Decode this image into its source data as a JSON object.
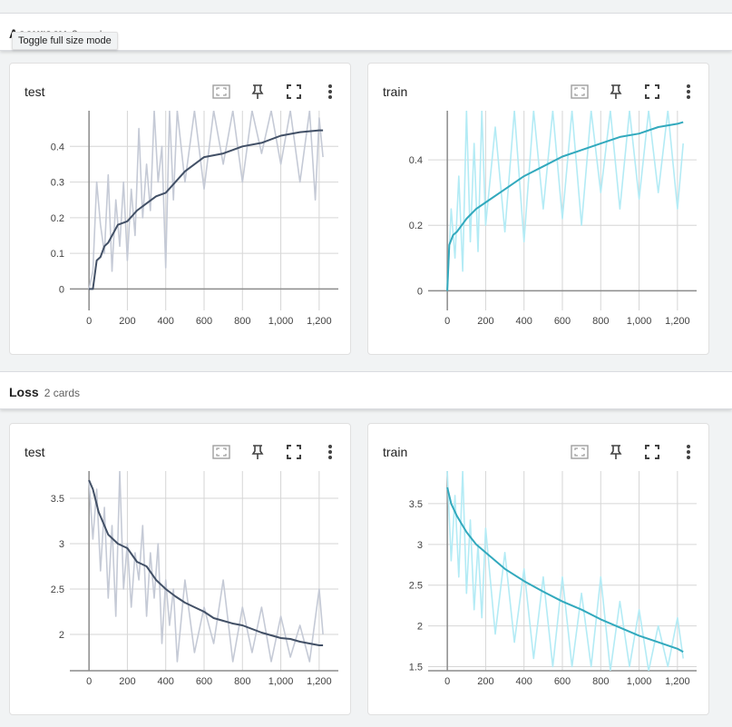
{
  "tooltip": "Toggle full size mode",
  "groups": [
    {
      "title": "Accuracy",
      "count": "2 cards"
    },
    {
      "title": "Loss",
      "count": "2 cards"
    }
  ],
  "chart_data": [
    {
      "type": "line",
      "title": "test",
      "group": "Accuracy",
      "xlim": [
        -100,
        1300
      ],
      "ylim": [
        -0.06,
        0.5
      ],
      "xticks": [
        0,
        200,
        400,
        600,
        800,
        1000,
        1200
      ],
      "xticklabels": [
        "0",
        "200",
        "400",
        "600",
        "800",
        "1,000",
        "1,200"
      ],
      "yticks": [
        0,
        0.1,
        0.2,
        0.3,
        0.4
      ],
      "yticklabels": [
        "0",
        "0.1",
        "0.2",
        "0.3",
        "0.4"
      ],
      "colors": {
        "raw": "#c5cad6",
        "smoothed": "#425066"
      },
      "series": [
        {
          "x": [
            0,
            20,
            40,
            60,
            80,
            100,
            150,
            200,
            250,
            300,
            350,
            400,
            500,
            600,
            700,
            800,
            900,
            1000,
            1100,
            1200,
            1220
          ],
          "values": [
            0.0,
            0.0,
            0.08,
            0.09,
            0.12,
            0.13,
            0.18,
            0.19,
            0.22,
            0.24,
            0.26,
            0.27,
            0.33,
            0.37,
            0.38,
            0.4,
            0.41,
            0.43,
            0.44,
            0.445,
            0.445
          ]
        },
        {
          "x": [
            0,
            20,
            40,
            60,
            80,
            100,
            120,
            140,
            160,
            180,
            200,
            220,
            240,
            260,
            280,
            300,
            320,
            340,
            360,
            380,
            400,
            420,
            440,
            460,
            500,
            550,
            600,
            650,
            700,
            750,
            800,
            850,
            900,
            950,
            1000,
            1050,
            1100,
            1150,
            1180,
            1200,
            1220
          ],
          "values": [
            0.0,
            0.05,
            0.3,
            0.18,
            0.1,
            0.32,
            0.05,
            0.25,
            0.12,
            0.3,
            0.08,
            0.28,
            0.15,
            0.45,
            0.2,
            0.35,
            0.22,
            0.5,
            0.3,
            0.4,
            0.06,
            0.5,
            0.25,
            0.5,
            0.3,
            0.5,
            0.28,
            0.5,
            0.35,
            0.5,
            0.3,
            0.5,
            0.38,
            0.5,
            0.35,
            0.5,
            0.3,
            0.5,
            0.25,
            0.48,
            0.37
          ]
        }
      ]
    },
    {
      "type": "line",
      "title": "train",
      "group": "Accuracy",
      "xlim": [
        -100,
        1300
      ],
      "ylim": [
        -0.06,
        0.55
      ],
      "xticks": [
        0,
        200,
        400,
        600,
        800,
        1000,
        1200
      ],
      "xticklabels": [
        "0",
        "200",
        "400",
        "600",
        "800",
        "1,000",
        "1,200"
      ],
      "yticks": [
        0,
        0.2,
        0.4
      ],
      "yticklabels": [
        "0",
        "0.2",
        "0.4"
      ],
      "colors": {
        "raw": "#b3ebf5",
        "smoothed": "#32a9bd"
      },
      "series": [
        {
          "x": [
            0,
            10,
            30,
            50,
            100,
            150,
            200,
            300,
            400,
            500,
            600,
            700,
            800,
            900,
            1000,
            1100,
            1200,
            1230
          ],
          "values": [
            0.0,
            0.14,
            0.17,
            0.18,
            0.22,
            0.25,
            0.27,
            0.31,
            0.35,
            0.38,
            0.41,
            0.43,
            0.45,
            0.47,
            0.48,
            0.5,
            0.51,
            0.515
          ]
        },
        {
          "x": [
            0,
            20,
            40,
            60,
            80,
            100,
            120,
            140,
            160,
            180,
            200,
            250,
            300,
            350,
            400,
            450,
            500,
            550,
            600,
            650,
            700,
            750,
            800,
            850,
            900,
            950,
            1000,
            1050,
            1100,
            1150,
            1200,
            1230
          ],
          "values": [
            0.0,
            0.25,
            0.1,
            0.35,
            0.06,
            0.55,
            0.15,
            0.45,
            0.12,
            0.55,
            0.2,
            0.5,
            0.18,
            0.55,
            0.15,
            0.55,
            0.25,
            0.55,
            0.22,
            0.55,
            0.2,
            0.55,
            0.3,
            0.55,
            0.25,
            0.55,
            0.28,
            0.55,
            0.3,
            0.55,
            0.25,
            0.45
          ]
        }
      ]
    },
    {
      "type": "line",
      "title": "test",
      "group": "Loss",
      "xlim": [
        -100,
        1300
      ],
      "ylim": [
        1.6,
        3.8
      ],
      "xticks": [
        0,
        200,
        400,
        600,
        800,
        1000,
        1200
      ],
      "xticklabels": [
        "0",
        "200",
        "400",
        "600",
        "800",
        "1,000",
        "1,200"
      ],
      "yticks": [
        2,
        2.5,
        3,
        3.5
      ],
      "yticklabels": [
        "2",
        "2.5",
        "3",
        "3.5"
      ],
      "colors": {
        "raw": "#c5cad6",
        "smoothed": "#425066"
      },
      "series": [
        {
          "x": [
            0,
            20,
            50,
            100,
            150,
            200,
            250,
            300,
            350,
            400,
            450,
            500,
            550,
            600,
            650,
            700,
            750,
            800,
            850,
            900,
            950,
            1000,
            1050,
            1100,
            1150,
            1200,
            1220
          ],
          "values": [
            3.7,
            3.6,
            3.35,
            3.1,
            3.0,
            2.95,
            2.8,
            2.75,
            2.6,
            2.5,
            2.42,
            2.35,
            2.3,
            2.25,
            2.18,
            2.15,
            2.12,
            2.1,
            2.06,
            2.02,
            1.99,
            1.96,
            1.95,
            1.92,
            1.9,
            1.88,
            1.88
          ]
        },
        {
          "x": [
            0,
            20,
            40,
            60,
            80,
            100,
            120,
            140,
            160,
            180,
            200,
            220,
            240,
            260,
            280,
            300,
            320,
            340,
            360,
            380,
            400,
            420,
            440,
            460,
            500,
            550,
            600,
            650,
            700,
            750,
            800,
            850,
            900,
            950,
            1000,
            1050,
            1100,
            1150,
            1200,
            1220
          ],
          "values": [
            3.7,
            3.05,
            3.6,
            2.7,
            3.4,
            2.4,
            3.2,
            2.2,
            3.8,
            2.5,
            3.0,
            2.3,
            2.9,
            2.6,
            3.2,
            2.2,
            2.9,
            2.4,
            3.0,
            1.9,
            2.6,
            2.1,
            2.5,
            1.7,
            2.6,
            1.8,
            2.3,
            1.9,
            2.6,
            1.7,
            2.3,
            1.8,
            2.3,
            1.7,
            2.2,
            1.75,
            2.1,
            1.7,
            2.5,
            2.0
          ]
        }
      ]
    },
    {
      "type": "line",
      "title": "train",
      "group": "Loss",
      "xlim": [
        -100,
        1300
      ],
      "ylim": [
        1.45,
        3.9
      ],
      "xticks": [
        0,
        200,
        400,
        600,
        800,
        1000,
        1200
      ],
      "xticklabels": [
        "0",
        "200",
        "400",
        "600",
        "800",
        "1,000",
        "1,200"
      ],
      "yticks": [
        1.5,
        2,
        2.5,
        3,
        3.5
      ],
      "yticklabels": [
        "1.5",
        "2",
        "2.5",
        "3",
        "3.5"
      ],
      "colors": {
        "raw": "#b3ebf5",
        "smoothed": "#32a9bd"
      },
      "series": [
        {
          "x": [
            0,
            20,
            50,
            100,
            150,
            200,
            300,
            400,
            500,
            600,
            700,
            800,
            900,
            1000,
            1100,
            1200,
            1230
          ],
          "values": [
            3.7,
            3.5,
            3.35,
            3.15,
            3.0,
            2.9,
            2.7,
            2.55,
            2.42,
            2.3,
            2.2,
            2.08,
            1.98,
            1.88,
            1.8,
            1.72,
            1.68
          ]
        },
        {
          "x": [
            0,
            20,
            40,
            60,
            80,
            100,
            120,
            140,
            160,
            180,
            200,
            250,
            300,
            350,
            400,
            450,
            500,
            550,
            600,
            650,
            700,
            750,
            800,
            850,
            900,
            950,
            1000,
            1050,
            1100,
            1150,
            1200,
            1230
          ],
          "values": [
            3.9,
            2.8,
            3.6,
            2.6,
            3.9,
            2.4,
            3.3,
            2.2,
            3.0,
            2.1,
            3.2,
            1.9,
            2.9,
            1.8,
            2.7,
            1.6,
            2.6,
            1.5,
            2.6,
            1.5,
            2.4,
            1.5,
            2.6,
            1.45,
            2.3,
            1.5,
            2.2,
            1.45,
            2.0,
            1.5,
            2.1,
            1.6
          ]
        }
      ]
    }
  ]
}
